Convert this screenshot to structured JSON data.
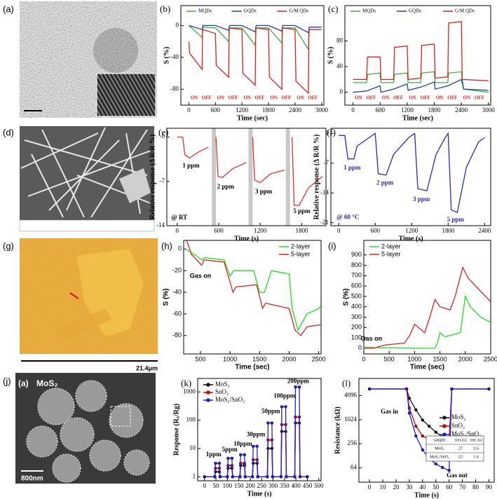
{
  "images": [
    {
      "label": "(a)"
    },
    {
      "label": "(d)"
    },
    {
      "label": "(g)",
      "scale_bar": "21.4μm"
    },
    {
      "label": "(j)",
      "inner_label": "(a)",
      "material": "MoS₂",
      "scale_bar": "800nm"
    }
  ],
  "chart_data": [
    {
      "type": "line",
      "label": "(b)",
      "xlabel": "Time (sec)",
      "ylabel": "S (%)",
      "xlim": [
        -180,
        3050
      ],
      "ylim": [
        -100,
        25
      ],
      "xticks": [
        0,
        600,
        1200,
        1800,
        2400,
        3000
      ],
      "yticks": [
        0,
        -40,
        -80
      ],
      "legend": "top",
      "series": [
        {
          "name": "MQDs",
          "color": "#3cb043",
          "x": [
            0,
            300,
            320,
            600,
            900,
            920,
            1200,
            1500,
            1520,
            1800,
            2100,
            2120,
            2400,
            2700,
            2720,
            3000
          ],
          "values": [
            0,
            -15,
            -2,
            -3,
            -20,
            -3,
            -3,
            -25,
            -3,
            -3,
            -22,
            -3,
            -3,
            -30,
            -5,
            -5
          ]
        },
        {
          "name": "GQDs",
          "color": "#2040b0",
          "x": [
            0,
            300,
            320,
            600,
            900,
            920,
            1200,
            1500,
            1520,
            1800,
            2100,
            2120,
            2400,
            2700,
            2720,
            3000
          ],
          "values": [
            0,
            -5,
            0,
            0,
            -6,
            0,
            0,
            -8,
            0,
            0,
            -7,
            0,
            0,
            -9,
            -2,
            -2
          ]
        },
        {
          "name": "G/M QDs",
          "color": "#e02020",
          "x": [
            0,
            20,
            300,
            310,
            600,
            620,
            900,
            910,
            1200,
            1220,
            1500,
            1510,
            1800,
            1820,
            2100,
            2110,
            2400,
            2420,
            2700,
            2710,
            3000
          ],
          "values": [
            -20,
            -35,
            -55,
            -5,
            -10,
            -50,
            -65,
            -3,
            -5,
            -60,
            -75,
            -3,
            -5,
            -65,
            -80,
            -3,
            -5,
            -70,
            -85,
            -5,
            -5
          ]
        }
      ],
      "annotations": [
        "ON",
        "OFF",
        "ON",
        "OFF",
        "ON",
        "OFF",
        "ON",
        "OFF",
        "ON",
        "OFF"
      ]
    },
    {
      "type": "line",
      "label": "(c)",
      "xlabel": "Time (sec)",
      "ylabel": "S (%)",
      "xlim": [
        -180,
        3050
      ],
      "ylim": [
        -20,
        135
      ],
      "xticks": [
        0,
        600,
        1200,
        1800,
        2400,
        3000
      ],
      "yticks": [
        0,
        40,
        80
      ],
      "legend": "top",
      "series": [
        {
          "name": "MQDs",
          "color": "#3cb043",
          "x": [
            0,
            300,
            330,
            600,
            620,
            900,
            920,
            1200,
            1220,
            1500,
            1520,
            1800,
            1820,
            2100,
            2120,
            2400,
            2450,
            3000
          ],
          "values": [
            15,
            15,
            28,
            30,
            15,
            15,
            28,
            30,
            15,
            15,
            30,
            32,
            15,
            15,
            30,
            32,
            5,
            0
          ]
        },
        {
          "name": "GQDs",
          "color": "#2040b0",
          "x": [
            0,
            300,
            600,
            620,
            900,
            1200,
            1220,
            1500,
            1800,
            1820,
            2100,
            2400,
            2450,
            3000
          ],
          "values": [
            0,
            2,
            10,
            0,
            5,
            13,
            3,
            8,
            16,
            5,
            10,
            20,
            5,
            3
          ]
        },
        {
          "name": "G/M QDs",
          "color": "#e02020",
          "x": [
            0,
            300,
            320,
            600,
            620,
            900,
            920,
            1200,
            1220,
            1500,
            1520,
            1800,
            1820,
            2100,
            2120,
            2400,
            2420,
            3000
          ],
          "values": [
            20,
            20,
            55,
            55,
            20,
            20,
            70,
            72,
            20,
            22,
            73,
            75,
            22,
            24,
            108,
            110,
            20,
            18
          ]
        }
      ],
      "annotations": [
        "ON",
        "OFF",
        "ON",
        "OFF",
        "ON",
        "OFF",
        "ON",
        "OFF",
        "ON",
        "OFF"
      ]
    },
    {
      "type": "line",
      "label": "(e)",
      "xlabel": "Time (s)",
      "ylabel": "Relative response (Δ R/R %)",
      "xlim": [
        -150,
        2150
      ],
      "ylim": [
        -14,
        1.4
      ],
      "xticks": [
        0,
        600,
        1200,
        1800
      ],
      "yticks": [
        0,
        -7,
        -14
      ],
      "shaded_x": [
        [
          500,
          560
        ],
        [
          1030,
          1090
        ],
        [
          1570,
          1630
        ]
      ],
      "shade_color": "#c8c8c8",
      "series": [
        {
          "color": "#e8302a",
          "x": [
            0,
            80,
            110,
            180,
            300,
            450,
            530,
            560,
            590,
            650,
            800,
            1000,
            1060,
            1090,
            1120,
            1200,
            1350,
            1550,
            1600,
            1660,
            1690,
            1760,
            1900,
            2100
          ],
          "values": [
            0,
            0,
            -2.8,
            -3.3,
            -2.4,
            -1.6,
            null,
            0,
            -6.2,
            -6.4,
            -5,
            -4,
            null,
            0,
            -6.8,
            -7.2,
            -5.8,
            -5.2,
            null,
            0,
            -10.8,
            -10.8,
            -8,
            -6.2
          ]
        }
      ],
      "annotations": [
        "1 ppm",
        "2 ppm",
        "3 ppm",
        "5 ppm",
        "@ RT"
      ]
    },
    {
      "type": "line",
      "label": "(f)",
      "xlabel": "Time (s)",
      "ylabel": "Relative response (Δ R/R %)",
      "xlim": [
        -130,
        2500
      ],
      "ylim": [
        -21.7,
        1.2
      ],
      "xticks": [
        0,
        600,
        1200,
        1800,
        2400
      ],
      "yticks": [
        0,
        -7,
        -14,
        -21
      ],
      "series": [
        {
          "color": "#2a2ab8",
          "x": [
            0,
            100,
            150,
            250,
            300,
            500,
            600,
            650,
            780,
            900,
            1150,
            1250,
            1300,
            1450,
            1600,
            1750,
            1800,
            1850,
            1950,
            2100,
            2300,
            2400
          ],
          "values": [
            -0.5,
            -0.5,
            -6,
            -6,
            -3,
            -1,
            0,
            -9.5,
            -9.8,
            -5,
            -1,
            0,
            -13,
            -13.5,
            -5,
            -1,
            0,
            -18,
            -18.6,
            -8,
            -2,
            -1
          ]
        }
      ],
      "annotations": [
        "1 ppm",
        "2 ppm",
        "3 ppm",
        "5 ppm",
        "@ 60 °C"
      ]
    },
    {
      "type": "line",
      "label": "(h)",
      "xlabel": "Time (sec)",
      "ylabel": "S (%)",
      "xlim": [
        215,
        2540
      ],
      "ylim": [
        -97,
        8
      ],
      "xticks": [
        500,
        1000,
        1500,
        2000,
        2500
      ],
      "yticks": [
        0,
        -20,
        -40,
        -60,
        -80
      ],
      "legend": "upper right",
      "series": [
        {
          "name": "2-layer",
          "color": "#22dd22",
          "x": [
            250,
            400,
            520,
            560,
            900,
            1000,
            1060,
            1400,
            1500,
            1580,
            1700,
            2000,
            2050,
            2150,
            2300,
            2500,
            2530
          ],
          "values": [
            0,
            -5,
            -10,
            -8,
            -10,
            -25,
            -20,
            -20,
            -40,
            -40,
            -20,
            -23,
            -55,
            -75,
            -60,
            -55,
            -53
          ]
        },
        {
          "name": "5-layer",
          "color": "#dd2222",
          "x": [
            250,
            350,
            520,
            560,
            900,
            1050,
            1100,
            1450,
            1550,
            1600,
            2000,
            2100,
            2200,
            2300,
            2530
          ],
          "values": [
            10,
            -5,
            -15,
            -10,
            -12,
            -40,
            -35,
            -33,
            -55,
            -50,
            -55,
            -75,
            -80,
            -72,
            -70
          ]
        }
      ],
      "annotations": [
        "Gas on"
      ]
    },
    {
      "type": "line",
      "label": "(i)",
      "xlabel": "Time (sec)",
      "ylabel": "S (%)",
      "xlim": [
        0,
        2500
      ],
      "ylim": [
        -55,
        1040
      ],
      "xticks": [
        0,
        500,
        1000,
        1500,
        2000,
        2500
      ],
      "yticks": [
        0,
        100,
        200,
        300,
        400,
        500,
        600,
        700,
        800,
        900
      ],
      "legend": "upper left",
      "series": [
        {
          "name": "2-layer",
          "color": "#22dd22",
          "x": [
            0,
            300,
            600,
            1000,
            1400,
            1450,
            1500,
            1600,
            1900,
            2000,
            2100,
            2300,
            2500
          ],
          "values": [
            10,
            5,
            5,
            0,
            0,
            50,
            150,
            110,
            150,
            500,
            400,
            300,
            250
          ]
        },
        {
          "name": "5-layer",
          "color": "#dd2222",
          "x": [
            0,
            200,
            400,
            800,
            900,
            1000,
            1200,
            1300,
            1400,
            1500,
            1700,
            1800,
            1950,
            2050,
            2300,
            2500
          ],
          "values": [
            0,
            0,
            30,
            50,
            120,
            230,
            150,
            300,
            470,
            400,
            370,
            500,
            780,
            680,
            550,
            450
          ]
        }
      ],
      "annotations": [
        "Gas on"
      ]
    },
    {
      "type": "line",
      "label": "(k)",
      "xlabel": "Time (s)",
      "ylabel": "Response (Rₐ/Rg)",
      "xlim": [
        -30,
        510
      ],
      "ylim": [
        0.72,
        3000
      ],
      "log_y": true,
      "markers": true,
      "xticks": [
        0,
        50,
        100,
        150,
        200,
        250,
        300,
        350,
        400,
        450,
        500
      ],
      "yticks": [
        1,
        10,
        100,
        1000
      ],
      "legend": "upper left",
      "x": [
        0,
        45,
        48,
        65,
        68,
        100,
        103,
        120,
        123,
        155,
        158,
        175,
        178,
        210,
        213,
        230,
        233,
        275,
        278,
        295,
        298,
        335,
        338,
        355,
        358,
        395,
        398,
        415,
        418,
        450
      ],
      "series": [
        {
          "name": "MoS₂",
          "color": "#111111",
          "values": [
            1,
            1,
            1.5,
            1.5,
            1,
            1,
            2,
            2,
            1,
            1,
            2.5,
            2.5,
            1,
            1,
            3,
            3,
            1,
            1,
            10,
            10,
            1,
            1,
            40,
            40,
            1,
            1,
            80,
            80,
            1,
            1
          ]
        },
        {
          "name": "SnO₂",
          "color": "#e00000",
          "values": [
            1,
            1,
            2,
            2,
            1,
            1,
            2.5,
            2.5,
            1,
            1,
            3,
            3,
            1,
            1,
            4,
            4,
            1,
            1,
            20,
            20,
            1,
            1,
            70,
            70,
            1,
            1,
            130,
            130,
            1,
            1
          ]
        },
        {
          "name": "MoS₂/SnO₂",
          "color": "#2020e0",
          "values": [
            1,
            1,
            3,
            3,
            1,
            1,
            4.5,
            4.5,
            1,
            1,
            6,
            6,
            1,
            1,
            12,
            12,
            1,
            1,
            80,
            80,
            1,
            1,
            300,
            300,
            1,
            1,
            1500,
            1500,
            1,
            1
          ]
        }
      ],
      "annotations": [
        "1ppm",
        "5ppm",
        "10ppm",
        "30ppm",
        "50ppm",
        "100ppm",
        "200ppm"
      ]
    },
    {
      "type": "line",
      "label": "(l)",
      "xlabel": "Time (s)",
      "ylabel": "Resistance (kΩ)",
      "xlim": [
        -8,
        94
      ],
      "ylim": [
        28,
        11000
      ],
      "log_y": true,
      "markers": true,
      "xticks": [
        0,
        10,
        20,
        30,
        40,
        50,
        60,
        70,
        80,
        90
      ],
      "yticks": [
        64,
        256,
        1024,
        4096
      ],
      "legend": "center right",
      "x": [
        0,
        28,
        30,
        35,
        40,
        45,
        50,
        55,
        60,
        62,
        90
      ],
      "series": [
        {
          "name": "MoS₂",
          "color": "#111111",
          "values": [
            6000,
            6000,
            3500,
            1800,
            1000,
            700,
            500,
            380,
            300,
            6000,
            6000
          ]
        },
        {
          "name": "SnO₂",
          "color": "#e00000",
          "values": [
            6000,
            6000,
            2000,
            700,
            400,
            330,
            300,
            290,
            280,
            6000,
            6000
          ]
        },
        {
          "name": "MoS₂/SnO₂",
          "color": "#2020e0",
          "values": [
            6000,
            6000,
            1500,
            400,
            180,
            110,
            80,
            65,
            55,
            6000,
            6000
          ]
        }
      ],
      "annotations": [
        "Gas in",
        "Gas out"
      ],
      "inset_table": {
        "header": [
          "sample",
          "τres (s)",
          "τrec (s)"
        ],
        "rows": [
          [
            "MoS₂",
            "27",
            "2.6"
          ],
          [
            "MoS₂/SnO₂",
            "23",
            "1.6"
          ]
        ]
      }
    }
  ]
}
